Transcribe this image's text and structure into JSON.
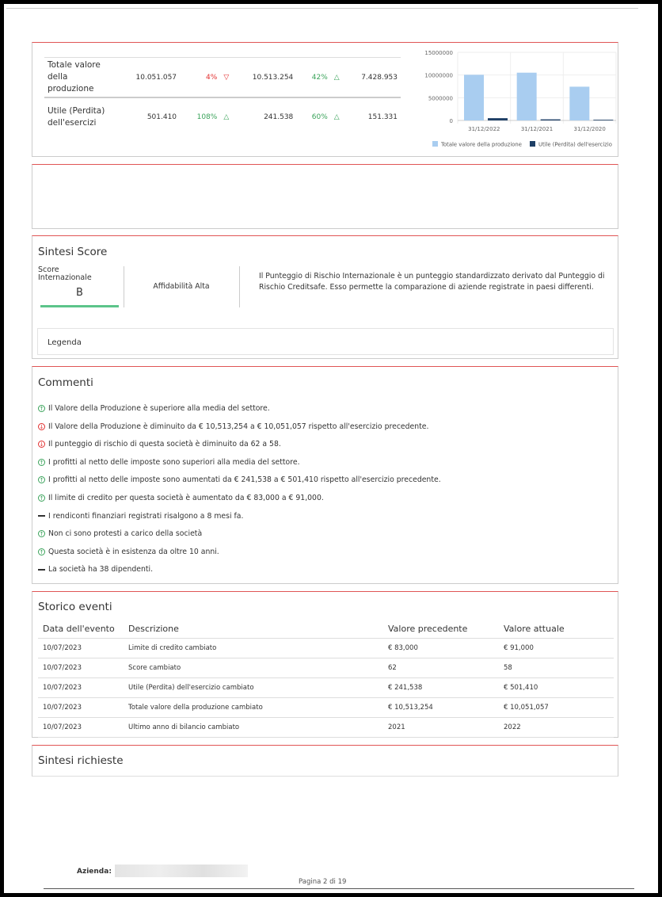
{
  "financials": {
    "rows": [
      {
        "label": "Totale valore della produzione",
        "v2022": "10.051.057",
        "delta1": "4%",
        "delta1_dir": "down",
        "v2021": "10.513.254",
        "delta2": "42%",
        "delta2_dir": "up",
        "v2020": "7.428.953"
      },
      {
        "label": "Utile (Perdita) dell'esercizi",
        "v2022": "501.410",
        "delta1": "108%",
        "delta1_dir": "up",
        "v2021": "241.538",
        "delta2": "60%",
        "delta2_dir": "up",
        "v2020": "151.331"
      }
    ]
  },
  "chart_data": {
    "type": "bar",
    "categories": [
      "31/12/2022",
      "31/12/2021",
      "31/12/2020"
    ],
    "series": [
      {
        "name": "Totale valore della produzione",
        "values": [
          10051057,
          10513254,
          7428953
        ],
        "color": "#a9cdf0"
      },
      {
        "name": "Utile (Perdita) dell'esercizio",
        "values": [
          501410,
          241538,
          151331
        ],
        "color": "#1e3f66"
      }
    ],
    "ylim": [
      0,
      15000000
    ],
    "yticks": [
      "0",
      "5000000",
      "10000000",
      "15000000"
    ],
    "grid": true,
    "legend": "bottom"
  },
  "score": {
    "title": "Sintesi Score",
    "label": "Score Internazionale",
    "value": "B",
    "bar_color": "#5cc48a",
    "rating": "Affidabilità Alta",
    "description": "Il Punteggio di Rischio Internazionale è un punteggio standardizzato derivato dal Punteggio di Rischio Creditsafe. Esso permette la comparazione di aziende registrate in paesi differenti.",
    "legend": "Legenda"
  },
  "comments": {
    "title": "Commenti",
    "items": [
      {
        "type": "up",
        "text": "Il Valore della Produzione è superiore alla media del settore."
      },
      {
        "type": "down",
        "text": "Il Valore della Produzione è diminuito da € 10,513,254 a € 10,051,057 rispetto all'esercizio precedente."
      },
      {
        "type": "down",
        "text": "Il punteggio di rischio di questa società è diminuito da 62 a 58."
      },
      {
        "type": "up",
        "text": "I profitti al netto delle imposte sono superiori alla media del settore."
      },
      {
        "type": "up",
        "text": "I profitti al netto delle imposte sono aumentati da € 241,538 a € 501,410 rispetto all'esercizio precedente."
      },
      {
        "type": "up",
        "text": "Il limite di credito per questa società è aumentato da € 83,000 a € 91,000."
      },
      {
        "type": "neutral",
        "text": "I rendiconti finanziari registrati risalgono a 8 mesi fa."
      },
      {
        "type": "up",
        "text": "Non ci sono protesti a carico della società"
      },
      {
        "type": "up",
        "text": "Questa società è in esistenza da oltre 10 anni."
      },
      {
        "type": "neutral",
        "text": "La società ha 38 dipendenti."
      }
    ]
  },
  "events": {
    "title": "Storico eventi",
    "headers": [
      "Data dell'evento",
      "Descrizione",
      "Valore precedente",
      "Valore attuale"
    ],
    "rows": [
      [
        "10/07/2023",
        "Limite di credito cambiato",
        "€ 83,000",
        "€ 91,000"
      ],
      [
        "10/07/2023",
        "Score cambiato",
        "62",
        "58"
      ],
      [
        "10/07/2023",
        "Utile (Perdita) dell'esercizio cambiato",
        "€ 241,538",
        "€ 501,410"
      ],
      [
        "10/07/2023",
        "Totale valore della produzione cambiato",
        "€ 10,513,254",
        "€ 10,051,057"
      ],
      [
        "10/07/2023",
        "Ultimo anno di bilancio cambiato",
        "2021",
        "2022"
      ]
    ]
  },
  "requests": {
    "title": "Sintesi richieste"
  },
  "footer": {
    "company_label": "Azienda:",
    "page": "Pagina 2 di 19"
  }
}
